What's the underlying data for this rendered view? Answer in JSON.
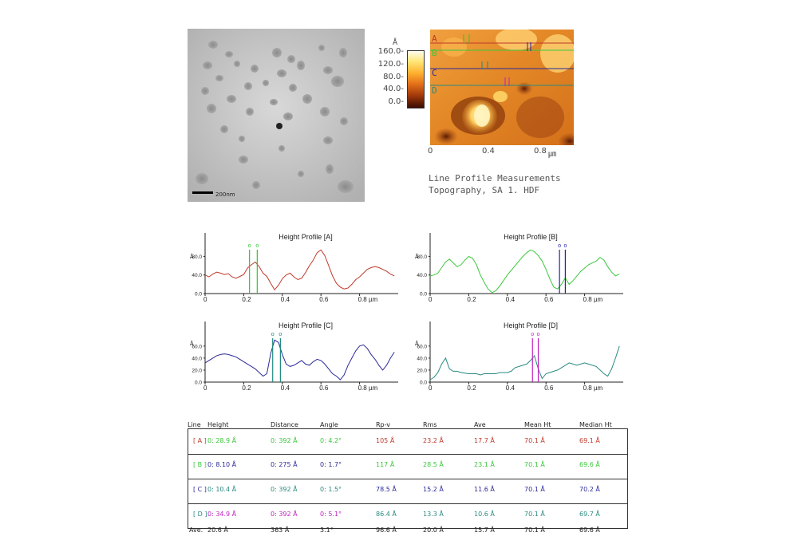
{
  "colors": {
    "A": "#c0392b",
    "B": "#3ac83a",
    "C": "#2a2a99",
    "D": "#2a8a80",
    "cursor_green": "#2ec52e",
    "cursor_blue": "#2222aa",
    "cursor_teal": "#1e8a7e",
    "cursor_magenta": "#c020c0"
  },
  "tem": {
    "scale_label": "200nm"
  },
  "afm": {
    "unit": "Å",
    "colorbar_ticks": [
      "160.0-",
      "120.0-",
      "80.0-",
      "40.0-",
      "0.0-"
    ],
    "x_ticks": [
      "0",
      "0.4",
      "0.8"
    ],
    "x_unit": "㎛",
    "line_labels": [
      "A",
      "B",
      "C",
      "D"
    ],
    "caption1": "Line Profile Measurements",
    "caption2": "Topography, SA 1. HDF"
  },
  "chart_data": [
    {
      "type": "line",
      "title": "Height Profile [A]",
      "ylabel": "Å",
      "xlabel": "",
      "x_unit": "µm",
      "yticks": [
        "80.0",
        "40.0",
        "0.0"
      ],
      "xticks": [
        "0",
        "0.2",
        "0.4",
        "0.6",
        "0.8 µm"
      ],
      "xlim": [
        0,
        1.0
      ],
      "ylim": [
        0,
        110
      ],
      "cursor_marks": [
        "o",
        "o"
      ],
      "cursors": [
        0.23,
        0.27
      ],
      "series": [
        {
          "color": "#c0392b",
          "x": [
            0,
            0.02,
            0.04,
            0.06,
            0.08,
            0.1,
            0.12,
            0.14,
            0.16,
            0.18,
            0.2,
            0.22,
            0.24,
            0.26,
            0.28,
            0.3,
            0.32,
            0.34,
            0.36,
            0.38,
            0.4,
            0.42,
            0.44,
            0.46,
            0.48,
            0.5,
            0.52,
            0.54,
            0.56,
            0.58,
            0.6,
            0.62,
            0.64,
            0.66,
            0.68,
            0.7,
            0.72,
            0.74,
            0.76,
            0.78,
            0.8,
            0.82,
            0.84,
            0.86,
            0.88,
            0.9,
            0.92,
            0.94,
            0.96,
            0.98
          ],
          "values": [
            40,
            36,
            42,
            46,
            44,
            41,
            43,
            36,
            33,
            37,
            41,
            55,
            62,
            68,
            58,
            44,
            37,
            22,
            8,
            18,
            32,
            40,
            44,
            36,
            30,
            33,
            45,
            60,
            72,
            88,
            94,
            82,
            60,
            38,
            22,
            14,
            10,
            12,
            20,
            30,
            36,
            44,
            52,
            56,
            58,
            56,
            52,
            48,
            42,
            38
          ]
        }
      ]
    },
    {
      "type": "line",
      "title": "Height Profile [B]",
      "ylabel": "Å",
      "xlabel": "",
      "x_unit": "µm",
      "yticks": [
        "80.0",
        "40.0",
        "0.0"
      ],
      "xticks": [
        "0",
        "0.2",
        "0.4",
        "0.6",
        "0.8 µm"
      ],
      "xlim": [
        0,
        1.0
      ],
      "ylim": [
        0,
        110
      ],
      "cursor_marks": [
        "o",
        "o"
      ],
      "cursors": [
        0.67,
        0.7
      ],
      "series": [
        {
          "color": "#3ac83a",
          "x": [
            0,
            0.02,
            0.04,
            0.06,
            0.08,
            0.1,
            0.12,
            0.14,
            0.16,
            0.18,
            0.2,
            0.22,
            0.24,
            0.26,
            0.28,
            0.3,
            0.32,
            0.34,
            0.36,
            0.38,
            0.4,
            0.42,
            0.44,
            0.46,
            0.48,
            0.5,
            0.52,
            0.54,
            0.56,
            0.58,
            0.6,
            0.62,
            0.64,
            0.66,
            0.68,
            0.7,
            0.72,
            0.74,
            0.76,
            0.78,
            0.8,
            0.82,
            0.84,
            0.86,
            0.88,
            0.9,
            0.92,
            0.94,
            0.96,
            0.98
          ],
          "values": [
            38,
            40,
            44,
            56,
            68,
            74,
            66,
            58,
            62,
            72,
            80,
            76,
            62,
            40,
            24,
            10,
            2,
            6,
            16,
            28,
            40,
            50,
            60,
            70,
            80,
            88,
            94,
            90,
            82,
            70,
            52,
            32,
            14,
            10,
            20,
            34,
            20,
            28,
            38,
            48,
            55,
            62,
            66,
            70,
            78,
            72,
            58,
            46,
            38,
            42
          ]
        }
      ]
    },
    {
      "type": "line",
      "title": "Height Profile [C]",
      "ylabel": "Å",
      "xlabel": "",
      "x_unit": "µm",
      "yticks": [
        "60.0",
        "40.0",
        "20.0",
        "0.0"
      ],
      "xticks": [
        "0",
        "0.2",
        "0.4",
        "0.6",
        "0.8 µm"
      ],
      "xlim": [
        0,
        1.0
      ],
      "ylim": [
        0,
        85
      ],
      "cursor_marks": [
        "o",
        "o"
      ],
      "cursors": [
        0.35,
        0.39
      ],
      "series": [
        {
          "color": "#2a2a99",
          "x": [
            0,
            0.02,
            0.04,
            0.06,
            0.08,
            0.1,
            0.12,
            0.14,
            0.16,
            0.18,
            0.2,
            0.22,
            0.24,
            0.26,
            0.28,
            0.3,
            0.32,
            0.34,
            0.36,
            0.38,
            0.4,
            0.42,
            0.44,
            0.46,
            0.48,
            0.5,
            0.52,
            0.54,
            0.56,
            0.58,
            0.6,
            0.62,
            0.64,
            0.66,
            0.68,
            0.7,
            0.72,
            0.74,
            0.76,
            0.78,
            0.8,
            0.82,
            0.84,
            0.86,
            0.88,
            0.9,
            0.92,
            0.94,
            0.96,
            0.98
          ],
          "values": [
            32,
            36,
            40,
            44,
            46,
            47,
            46,
            44,
            42,
            38,
            34,
            30,
            26,
            22,
            16,
            10,
            14,
            48,
            70,
            66,
            46,
            30,
            26,
            28,
            32,
            36,
            30,
            28,
            34,
            38,
            36,
            30,
            22,
            14,
            10,
            4,
            12,
            28,
            40,
            52,
            60,
            62,
            56,
            46,
            38,
            28,
            20,
            28,
            40,
            50
          ]
        }
      ]
    },
    {
      "type": "line",
      "title": "Height Profile [D]",
      "ylabel": "Å",
      "xlabel": "",
      "x_unit": "µm",
      "yticks": [
        "60.0",
        "40.0",
        "20.0",
        "0.0"
      ],
      "xticks": [
        "0",
        "0.2",
        "0.4",
        "0.6",
        "0.8 µm"
      ],
      "xlim": [
        0,
        1.0
      ],
      "ylim": [
        0,
        85
      ],
      "cursor_marks": [
        "o",
        "o"
      ],
      "cursors": [
        0.53,
        0.56
      ],
      "series": [
        {
          "color": "#2a8a80",
          "x": [
            0,
            0.02,
            0.04,
            0.06,
            0.08,
            0.1,
            0.12,
            0.14,
            0.16,
            0.18,
            0.2,
            0.22,
            0.24,
            0.26,
            0.28,
            0.3,
            0.32,
            0.34,
            0.36,
            0.38,
            0.4,
            0.42,
            0.44,
            0.46,
            0.48,
            0.5,
            0.52,
            0.54,
            0.56,
            0.58,
            0.6,
            0.62,
            0.64,
            0.66,
            0.68,
            0.7,
            0.72,
            0.74,
            0.76,
            0.78,
            0.8,
            0.82,
            0.84,
            0.86,
            0.88,
            0.9,
            0.92,
            0.94,
            0.96,
            0.98
          ],
          "values": [
            4,
            8,
            16,
            30,
            40,
            22,
            18,
            18,
            16,
            15,
            14,
            14,
            14,
            12,
            14,
            14,
            14,
            14,
            16,
            16,
            16,
            18,
            24,
            26,
            28,
            30,
            36,
            44,
            22,
            6,
            14,
            16,
            18,
            20,
            24,
            28,
            32,
            30,
            28,
            30,
            32,
            30,
            28,
            26,
            20,
            14,
            10,
            22,
            40,
            60
          ]
        }
      ]
    }
  ],
  "table": {
    "headers": [
      "Line",
      "Height",
      "Distance",
      "Angle",
      "Rp-v",
      "Rms",
      "Ave",
      "Mean Ht",
      "Median Ht"
    ],
    "rows": [
      {
        "label": "[ A ]",
        "label_color": "#c0392b",
        "cells": [
          {
            "t": "0:  28.9 Å",
            "c": "#3ac83a"
          },
          {
            "t": "0:  392 Å",
            "c": "#3ac83a"
          },
          {
            "t": "0:  4.2°",
            "c": "#3ac83a"
          },
          {
            "t": "105 Å",
            "c": "#c0392b"
          },
          {
            "t": "23.2 Å",
            "c": "#c0392b"
          },
          {
            "t": "17.7 Å",
            "c": "#c0392b"
          },
          {
            "t": "70.1 Å",
            "c": "#c0392b"
          },
          {
            "t": "69.1 Å",
            "c": "#c0392b"
          }
        ]
      },
      {
        "label": "[ B ]",
        "label_color": "#3ac83a",
        "cells": [
          {
            "t": "0:  8.10 Å",
            "c": "#2a2a99"
          },
          {
            "t": "0:  275 Å",
            "c": "#2a2a99"
          },
          {
            "t": "0:  1.7°",
            "c": "#2a2a99"
          },
          {
            "t": "117 Å",
            "c": "#3ac83a"
          },
          {
            "t": "28.5 Å",
            "c": "#3ac83a"
          },
          {
            "t": "23.1 Å",
            "c": "#3ac83a"
          },
          {
            "t": "70.1 Å",
            "c": "#3ac83a"
          },
          {
            "t": "69.6 Å",
            "c": "#3ac83a"
          }
        ]
      },
      {
        "label": "[ C ]",
        "label_color": "#2a2a99",
        "cells": [
          {
            "t": "0:  10.4 Å",
            "c": "#2a8a80"
          },
          {
            "t": "0:  392 Å",
            "c": "#2a8a80"
          },
          {
            "t": "0:  1.5°",
            "c": "#2a8a80"
          },
          {
            "t": "78.5 Å",
            "c": "#2a2a99"
          },
          {
            "t": "15.2 Å",
            "c": "#2a2a99"
          },
          {
            "t": "11.6 Å",
            "c": "#2a2a99"
          },
          {
            "t": "70.1 Å",
            "c": "#2a2a99"
          },
          {
            "t": "70.2 Å",
            "c": "#2a2a99"
          }
        ]
      },
      {
        "label": "[ D ]",
        "label_color": "#2a8a80",
        "cells": [
          {
            "t": "0:  34.9 Å",
            "c": "#c020c0"
          },
          {
            "t": "0:  392 Å",
            "c": "#c020c0"
          },
          {
            "t": "0:  5.1°",
            "c": "#c020c0"
          },
          {
            "t": "86.4 Å",
            "c": "#2a8a80"
          },
          {
            "t": "13.3 Å",
            "c": "#2a8a80"
          },
          {
            "t": "10.6 Å",
            "c": "#2a8a80"
          },
          {
            "t": "70.1 Å",
            "c": "#2a8a80"
          },
          {
            "t": "69.7 Å",
            "c": "#2a8a80"
          }
        ]
      }
    ],
    "ave": {
      "label": "Ave.",
      "cells": [
        "20.6 Å",
        "363 Å",
        "3.1°",
        "96.6 Å",
        "20.0 Å",
        "15.7 Å",
        "70.1 Å",
        "69.6 Å"
      ]
    }
  }
}
